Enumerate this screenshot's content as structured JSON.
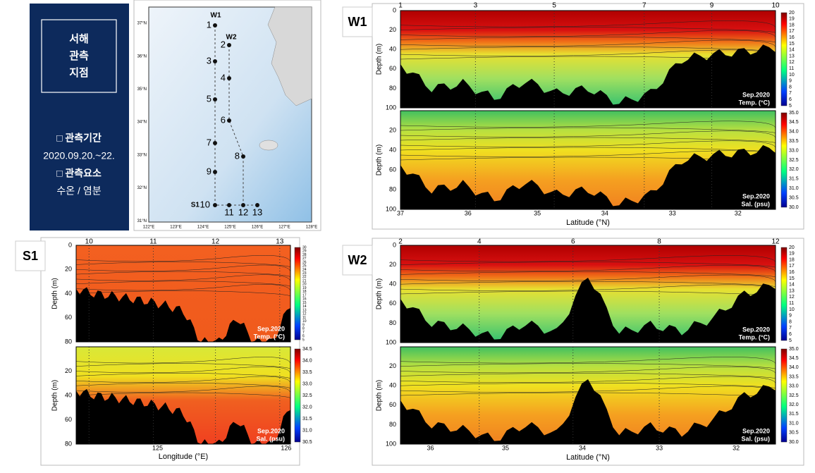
{
  "info_box": {
    "title_lines": [
      "서해",
      "관측",
      "지점"
    ],
    "items": [
      "□ 관측기간",
      "2020.09.20.~22.",
      "□ 관측요소",
      "수온 / 염분"
    ]
  },
  "map": {
    "lat_labels": [
      "37°N",
      "36°N",
      "35°N",
      "34°N",
      "33°N",
      "32°N",
      "31°N"
    ],
    "lon_labels": [
      "122°E",
      "123°E",
      "124°E",
      "125°E",
      "126°E",
      "127°E",
      "128°E"
    ],
    "stations": [
      "W1",
      "W2",
      "1",
      "2",
      "3",
      "4",
      "5",
      "6",
      "7",
      "8",
      "9",
      "S1",
      "10",
      "11",
      "12",
      "13"
    ]
  },
  "panels": [
    {
      "label": "W1",
      "stations": [
        "1",
        "3",
        "5",
        "7",
        "9",
        "10"
      ],
      "xticks": [
        "37",
        "36",
        "35",
        "34",
        "33",
        "32"
      ],
      "xlabel": "Latitude (°N)",
      "plots": [
        {
          "date": "Sep.2020",
          "variable": "Temp. (°C)",
          "ylabel": "Depth (m)",
          "yticks": [
            "0",
            "20",
            "40",
            "60",
            "80",
            "100"
          ],
          "cbar": [
            "20",
            "19",
            "18",
            "17",
            "16",
            "15",
            "14",
            "13",
            "12",
            "11",
            "10",
            "9",
            "8",
            "7",
            "6",
            "5"
          ]
        },
        {
          "date": "Sep.2020",
          "variable": "Sal. (psu)",
          "ylabel": "Depth (m)",
          "yticks": [
            "20",
            "40",
            "60",
            "80",
            "100"
          ],
          "cbar": [
            "35.0",
            "34.5",
            "34.0",
            "33.5",
            "33.0",
            "32.5",
            "32.0",
            "31.5",
            "31.0",
            "30.5",
            "30.0"
          ]
        }
      ]
    },
    {
      "label": "S1",
      "stations": [
        "10",
        "11",
        "12",
        "13"
      ],
      "xticks": [
        "125",
        "126"
      ],
      "xlabel": "Longitude (°E)",
      "plots": [
        {
          "date": "Sep.2020",
          "variable": "Temp. (°C)",
          "ylabel": "Depth (m)",
          "yticks": [
            "0",
            "20",
            "40",
            "60",
            "80"
          ],
          "cbar": [
            "30",
            "29",
            "28",
            "27",
            "26",
            "25",
            "24",
            "23",
            "22",
            "21",
            "20",
            "19",
            "18",
            "17",
            "16",
            "15",
            "14",
            "13",
            "12",
            "11",
            "10",
            "9",
            "8",
            "7",
            "6",
            "5"
          ]
        },
        {
          "date": "Sep.2020",
          "variable": "Sal. (psu)",
          "ylabel": "Depth (m)",
          "yticks": [
            "20",
            "40",
            "60",
            "80"
          ],
          "cbar": [
            "34.5",
            "34.0",
            "33.5",
            "33.0",
            "32.5",
            "32.0",
            "31.5",
            "31.0",
            "30.5"
          ]
        }
      ]
    },
    {
      "label": "W2",
      "stations": [
        "2",
        "4",
        "6",
        "8",
        "12"
      ],
      "xticks": [
        "36",
        "35",
        "34",
        "33",
        "32"
      ],
      "xlabel": "Latitude (°N)",
      "plots": [
        {
          "date": "Sep.2020",
          "variable": "Temp. (°C)",
          "ylabel": "Depth (m)",
          "yticks": [
            "0",
            "20",
            "40",
            "60",
            "80",
            "100"
          ],
          "cbar": [
            "20",
            "19",
            "18",
            "17",
            "16",
            "15",
            "14",
            "13",
            "12",
            "11",
            "10",
            "9",
            "8",
            "7",
            "6",
            "5"
          ]
        },
        {
          "date": "Sep.2020",
          "variable": "Sal. (psu)",
          "ylabel": "Depth (m)",
          "yticks": [
            "20",
            "40",
            "60",
            "80",
            "100"
          ],
          "cbar": [
            "35.0",
            "34.5",
            "34.0",
            "33.5",
            "33.0",
            "32.5",
            "32.0",
            "31.5",
            "31.0",
            "30.5",
            "30.0"
          ]
        }
      ]
    }
  ]
}
